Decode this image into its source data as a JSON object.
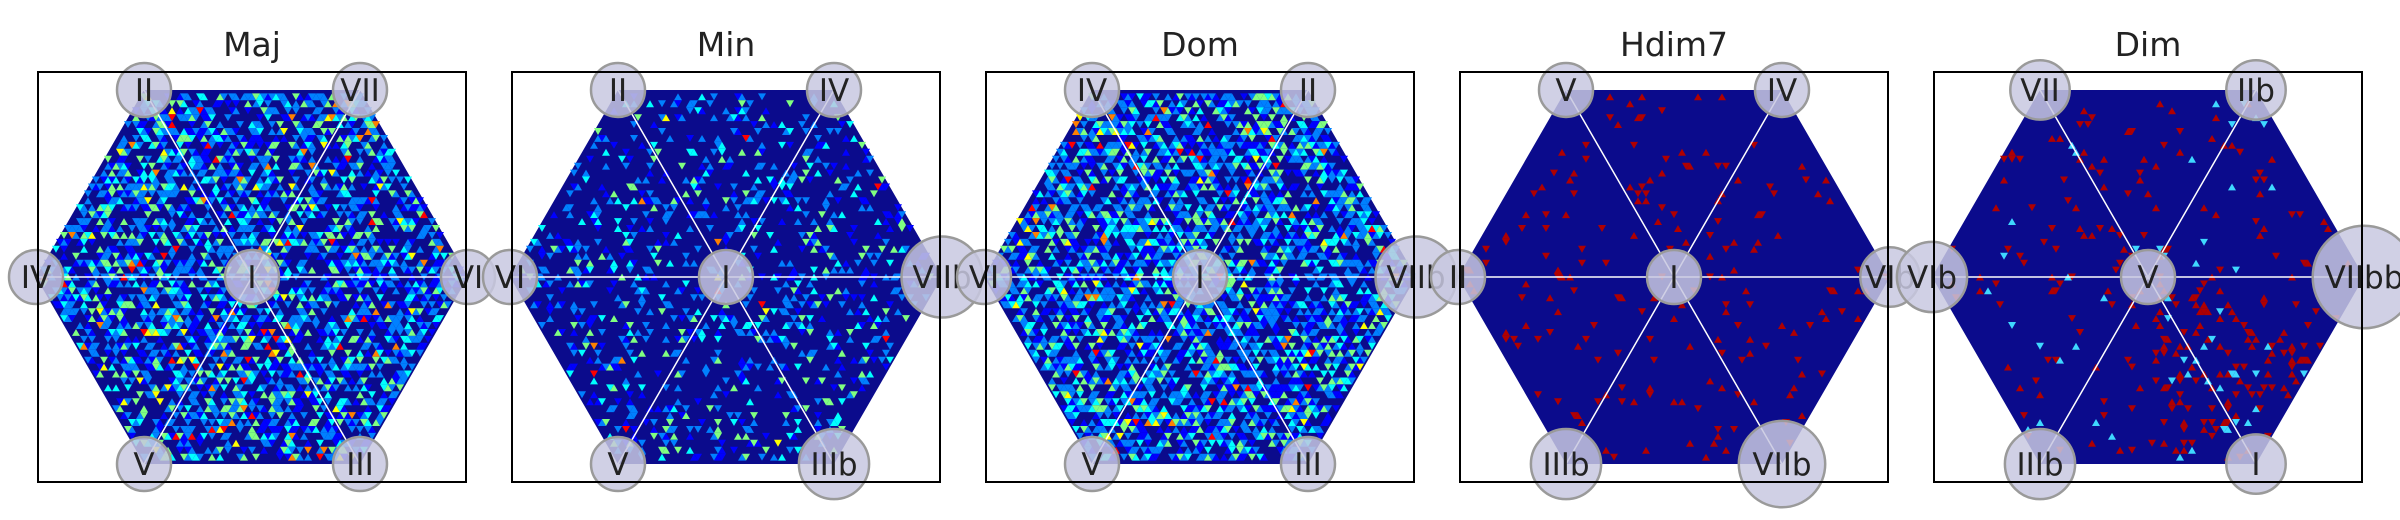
{
  "figure": {
    "background": "#ffffff",
    "colormap": [
      "#00007f",
      "#0000ff",
      "#0080ff",
      "#00ffff",
      "#80ff80",
      "#ffff00",
      "#ff8000",
      "#ff0000",
      "#800000"
    ],
    "hexagon_background": "#0b0b8c",
    "spoke_color": "#ffffff",
    "node_fill": "#c8c8e0",
    "node_stroke": "#9a9a9a"
  },
  "chart_data": [
    {
      "type": "heatmap",
      "title": "Maj",
      "grid": false,
      "legend": "none",
      "nodes": [
        {
          "label": "II",
          "position": "top-left",
          "size": 1.0
        },
        {
          "label": "VII",
          "position": "top-right",
          "size": 1.0
        },
        {
          "label": "IV",
          "position": "left",
          "size": 1.0
        },
        {
          "label": "I",
          "position": "center",
          "size": 1.0
        },
        {
          "label": "VI",
          "position": "right",
          "size": 1.0
        },
        {
          "label": "V",
          "position": "bottom-left",
          "size": 1.0
        },
        {
          "label": "III",
          "position": "bottom-right",
          "size": 1.0
        }
      ],
      "density": 0.55,
      "hot_fraction": 0.05,
      "red_only": false,
      "cluster": null
    },
    {
      "type": "heatmap",
      "title": "Min",
      "grid": false,
      "legend": "none",
      "nodes": [
        {
          "label": "II",
          "position": "top-left",
          "size": 1.0
        },
        {
          "label": "IV",
          "position": "top-right",
          "size": 1.0
        },
        {
          "label": "VI",
          "position": "left",
          "size": 1.0
        },
        {
          "label": "I",
          "position": "center",
          "size": 1.0
        },
        {
          "label": "VIIb",
          "position": "right",
          "size": 1.5
        },
        {
          "label": "V",
          "position": "bottom-left",
          "size": 1.0
        },
        {
          "label": "IIIb",
          "position": "bottom-right",
          "size": 1.3
        }
      ],
      "density": 0.22,
      "hot_fraction": 0.02,
      "red_only": false,
      "cluster": null
    },
    {
      "type": "heatmap",
      "title": "Dom",
      "grid": false,
      "legend": "none",
      "nodes": [
        {
          "label": "IV",
          "position": "top-left",
          "size": 1.0
        },
        {
          "label": "II",
          "position": "top-right",
          "size": 1.0
        },
        {
          "label": "VI",
          "position": "left",
          "size": 1.0
        },
        {
          "label": "I",
          "position": "center",
          "size": 1.0
        },
        {
          "label": "VIIb",
          "position": "right",
          "size": 1.5
        },
        {
          "label": "V",
          "position": "bottom-left",
          "size": 1.0
        },
        {
          "label": "III",
          "position": "bottom-right",
          "size": 1.0
        }
      ],
      "density": 0.6,
      "hot_fraction": 0.04,
      "red_only": false,
      "cluster": null
    },
    {
      "type": "heatmap",
      "title": "Hdim7",
      "grid": false,
      "legend": "none",
      "nodes": [
        {
          "label": "V",
          "position": "top-left",
          "size": 1.0
        },
        {
          "label": "IV",
          "position": "top-right",
          "size": 1.0
        },
        {
          "label": "II",
          "position": "left",
          "size": 1.0
        },
        {
          "label": "I",
          "position": "center",
          "size": 1.0
        },
        {
          "label": "VIb",
          "position": "right",
          "size": 1.1
        },
        {
          "label": "IIIb",
          "position": "bottom-left",
          "size": 1.3
        },
        {
          "label": "VIIb",
          "position": "bottom-right",
          "size": 1.6
        }
      ],
      "density": 0.04,
      "hot_fraction": 1.0,
      "red_only": true,
      "cluster": null
    },
    {
      "type": "heatmap",
      "title": "Dim",
      "grid": false,
      "legend": "none",
      "nodes": [
        {
          "label": "VII",
          "position": "top-left",
          "size": 1.1
        },
        {
          "label": "IIb",
          "position": "top-right",
          "size": 1.1
        },
        {
          "label": "VIb",
          "position": "left",
          "size": 1.3
        },
        {
          "label": "V",
          "position": "center",
          "size": 1.0
        },
        {
          "label": "VIIbb",
          "position": "right",
          "size": 1.9
        },
        {
          "label": "IIIb",
          "position": "bottom-left",
          "size": 1.3
        },
        {
          "label": "I",
          "position": "bottom-right",
          "size": 1.1
        }
      ],
      "density": 0.07,
      "hot_fraction": 1.0,
      "red_only": true,
      "cluster": "bottom-right"
    }
  ]
}
